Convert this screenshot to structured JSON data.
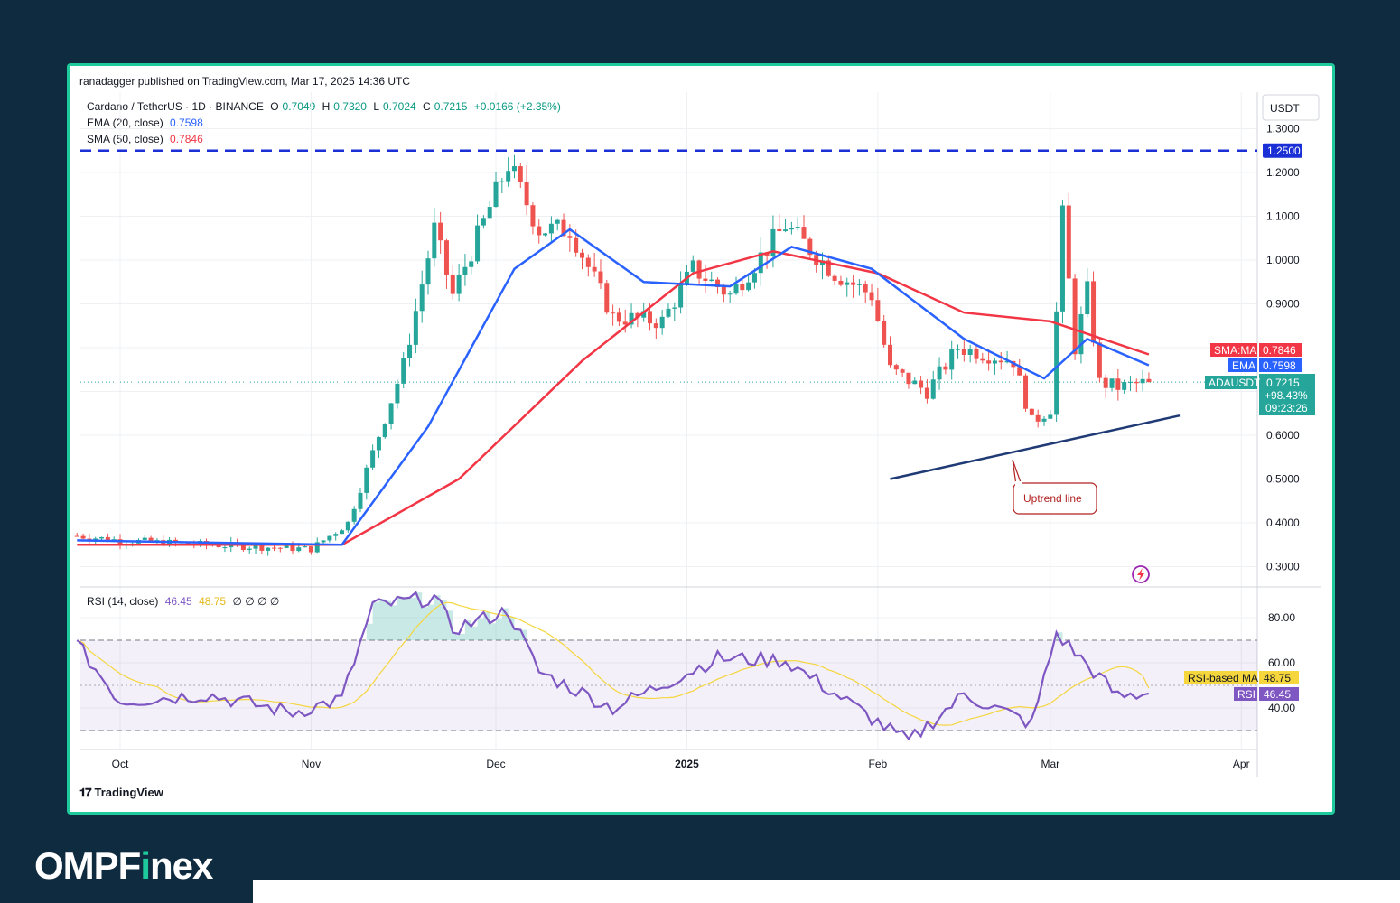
{
  "header": {
    "published": "ranadagger published on TradingView.com, Mar 17, 2025 14:36 UTC"
  },
  "legend": {
    "symbol": "Cardano / TetherUS · 1D · BINANCE",
    "o_label": "O",
    "o": "0.7049",
    "h_label": "H",
    "h": "0.7320",
    "l_label": "L",
    "l": "0.7024",
    "c_label": "C",
    "c": "0.7215",
    "change": "+0.0166 (+2.35%)",
    "ema_label": "EMA (20, close)",
    "ema_value": "0.7598",
    "sma_label": "SMA (50, close)",
    "sma_value": "0.7846",
    "rsi_label": "RSI (14, close)",
    "rsi_value": "46.45",
    "rsi_ma_value": "48.75",
    "rsi_extra": "∅ ∅ ∅ ∅"
  },
  "axis": {
    "currency": "USDT",
    "price_ticks": [
      "1.3000",
      "1.2000",
      "1.1000",
      "1.0000",
      "0.9000",
      "0.6000",
      "0.5000",
      "0.4000",
      "0.3000"
    ],
    "rsi_ticks": [
      "80.00",
      "60.00",
      "40.00"
    ],
    "time_labels": [
      "Oct",
      "Nov",
      "Dec",
      "2025",
      "Feb",
      "Mar",
      "Apr"
    ]
  },
  "tags": {
    "resistance": "1.2500",
    "sma_name": "SMA:MA",
    "sma_value": "0.7846",
    "ema_name": "EMA",
    "ema_value": "0.7598",
    "pair_name": "ADAUSDT",
    "pair_value": "0.7215",
    "pair_change": "+98.43%",
    "countdown": "09:23:26",
    "rsi_ma_name": "RSI-based MA",
    "rsi_ma_value": "48.75",
    "rsi_name": "RSI",
    "rsi_value": "46.45"
  },
  "annotation": {
    "uptrend": "Uptrend line"
  },
  "footer": {
    "tradingview": "TradingView",
    "brand_a": "OMPF",
    "brand_i": "i",
    "brand_b": "nex"
  },
  "colors": {
    "up": "#26a69a",
    "down": "#ef5350",
    "ema": "#2962ff",
    "sma": "#f23645",
    "rsi": "#7e57c2",
    "rsi_ma": "#f5d63d",
    "resistance": "#1b2fd6",
    "trendline": "#1f3a75",
    "frame": "#1ec99b"
  },
  "chart_data": {
    "type": "candlestick",
    "title": "Cardano / TetherUS · 1D · BINANCE",
    "ylim": [
      0.27,
      1.33
    ],
    "resistance_level": 1.25,
    "trendline": [
      {
        "date": "2025-02-03",
        "price": 0.5
      },
      {
        "date": "2025-03-22",
        "price": 0.645
      }
    ],
    "last_close": 0.7215,
    "ema20_last": 0.7598,
    "sma50_last": 0.7846,
    "price_path": [
      {
        "date": "2024-09-24",
        "close": 0.37
      },
      {
        "date": "2024-10-01",
        "close": 0.36
      },
      {
        "date": "2024-10-15",
        "close": 0.35
      },
      {
        "date": "2024-11-01",
        "close": 0.34
      },
      {
        "date": "2024-11-07",
        "close": 0.4
      },
      {
        "date": "2024-11-12",
        "close": 0.6
      },
      {
        "date": "2024-11-16",
        "close": 0.76
      },
      {
        "date": "2024-11-21",
        "close": 1.07
      },
      {
        "date": "2024-11-24",
        "close": 0.92
      },
      {
        "date": "2024-12-03",
        "close": 1.22
      },
      {
        "date": "2024-12-08",
        "close": 1.07
      },
      {
        "date": "2024-12-13",
        "close": 1.07
      },
      {
        "date": "2024-12-20",
        "close": 0.87
      },
      {
        "date": "2024-12-28",
        "close": 0.86
      },
      {
        "date": "2025-01-02",
        "close": 0.98
      },
      {
        "date": "2025-01-08",
        "close": 0.92
      },
      {
        "date": "2025-01-17",
        "close": 1.08
      },
      {
        "date": "2025-01-25",
        "close": 0.97
      },
      {
        "date": "2025-01-31",
        "close": 0.92
      },
      {
        "date": "2025-02-03",
        "close": 0.75
      },
      {
        "date": "2025-02-09",
        "close": 0.7
      },
      {
        "date": "2025-02-14",
        "close": 0.8
      },
      {
        "date": "2025-02-23",
        "close": 0.77
      },
      {
        "date": "2025-02-26",
        "close": 0.63
      },
      {
        "date": "2025-03-01",
        "close": 0.66
      },
      {
        "date": "2025-03-03",
        "close": 1.1
      },
      {
        "date": "2025-03-05",
        "close": 0.8
      },
      {
        "date": "2025-03-07",
        "close": 0.93
      },
      {
        "date": "2025-03-09",
        "close": 0.72
      },
      {
        "date": "2025-03-12",
        "close": 0.71
      },
      {
        "date": "2025-03-17",
        "close": 0.7215
      }
    ],
    "ema20": [
      {
        "date": "2024-09-24",
        "value": 0.36
      },
      {
        "date": "2024-11-06",
        "value": 0.35
      },
      {
        "date": "2024-11-20",
        "value": 0.62
      },
      {
        "date": "2024-12-04",
        "value": 0.98
      },
      {
        "date": "2024-12-13",
        "value": 1.07
      },
      {
        "date": "2024-12-25",
        "value": 0.95
      },
      {
        "date": "2025-01-08",
        "value": 0.94
      },
      {
        "date": "2025-01-18",
        "value": 1.03
      },
      {
        "date": "2025-01-31",
        "value": 0.98
      },
      {
        "date": "2025-02-15",
        "value": 0.82
      },
      {
        "date": "2025-02-28",
        "value": 0.73
      },
      {
        "date": "2025-03-07",
        "value": 0.82
      },
      {
        "date": "2025-03-17",
        "value": 0.7598
      }
    ],
    "sma50": [
      {
        "date": "2024-09-24",
        "value": 0.35
      },
      {
        "date": "2024-11-06",
        "value": 0.35
      },
      {
        "date": "2024-11-25",
        "value": 0.5
      },
      {
        "date": "2024-12-15",
        "value": 0.77
      },
      {
        "date": "2025-01-02",
        "value": 0.97
      },
      {
        "date": "2025-01-15",
        "value": 1.02
      },
      {
        "date": "2025-02-01",
        "value": 0.97
      },
      {
        "date": "2025-02-15",
        "value": 0.88
      },
      {
        "date": "2025-03-01",
        "value": 0.86
      },
      {
        "date": "2025-03-17",
        "value": 0.7846
      }
    ],
    "rsi14": [
      {
        "date": "2024-09-24",
        "value": 68
      },
      {
        "date": "2024-10-01",
        "value": 43
      },
      {
        "date": "2024-10-15",
        "value": 46
      },
      {
        "date": "2024-10-29",
        "value": 38
      },
      {
        "date": "2024-11-06",
        "value": 44
      },
      {
        "date": "2024-11-11",
        "value": 85
      },
      {
        "date": "2024-11-21",
        "value": 89
      },
      {
        "date": "2024-11-24",
        "value": 75
      },
      {
        "date": "2024-12-03",
        "value": 83
      },
      {
        "date": "2024-12-08",
        "value": 56
      },
      {
        "date": "2024-12-20",
        "value": 40
      },
      {
        "date": "2025-01-06",
        "value": 62
      },
      {
        "date": "2025-01-17",
        "value": 61
      },
      {
        "date": "2025-02-03",
        "value": 30
      },
      {
        "date": "2025-02-06",
        "value": 25
      },
      {
        "date": "2025-02-15",
        "value": 46
      },
      {
        "date": "2025-02-26",
        "value": 33
      },
      {
        "date": "2025-03-02",
        "value": 73
      },
      {
        "date": "2025-03-12",
        "value": 45
      },
      {
        "date": "2025-03-17",
        "value": 46.45
      }
    ],
    "rsi_ma_last": 48.75,
    "rsi_bands": [
      70,
      50,
      30
    ]
  }
}
